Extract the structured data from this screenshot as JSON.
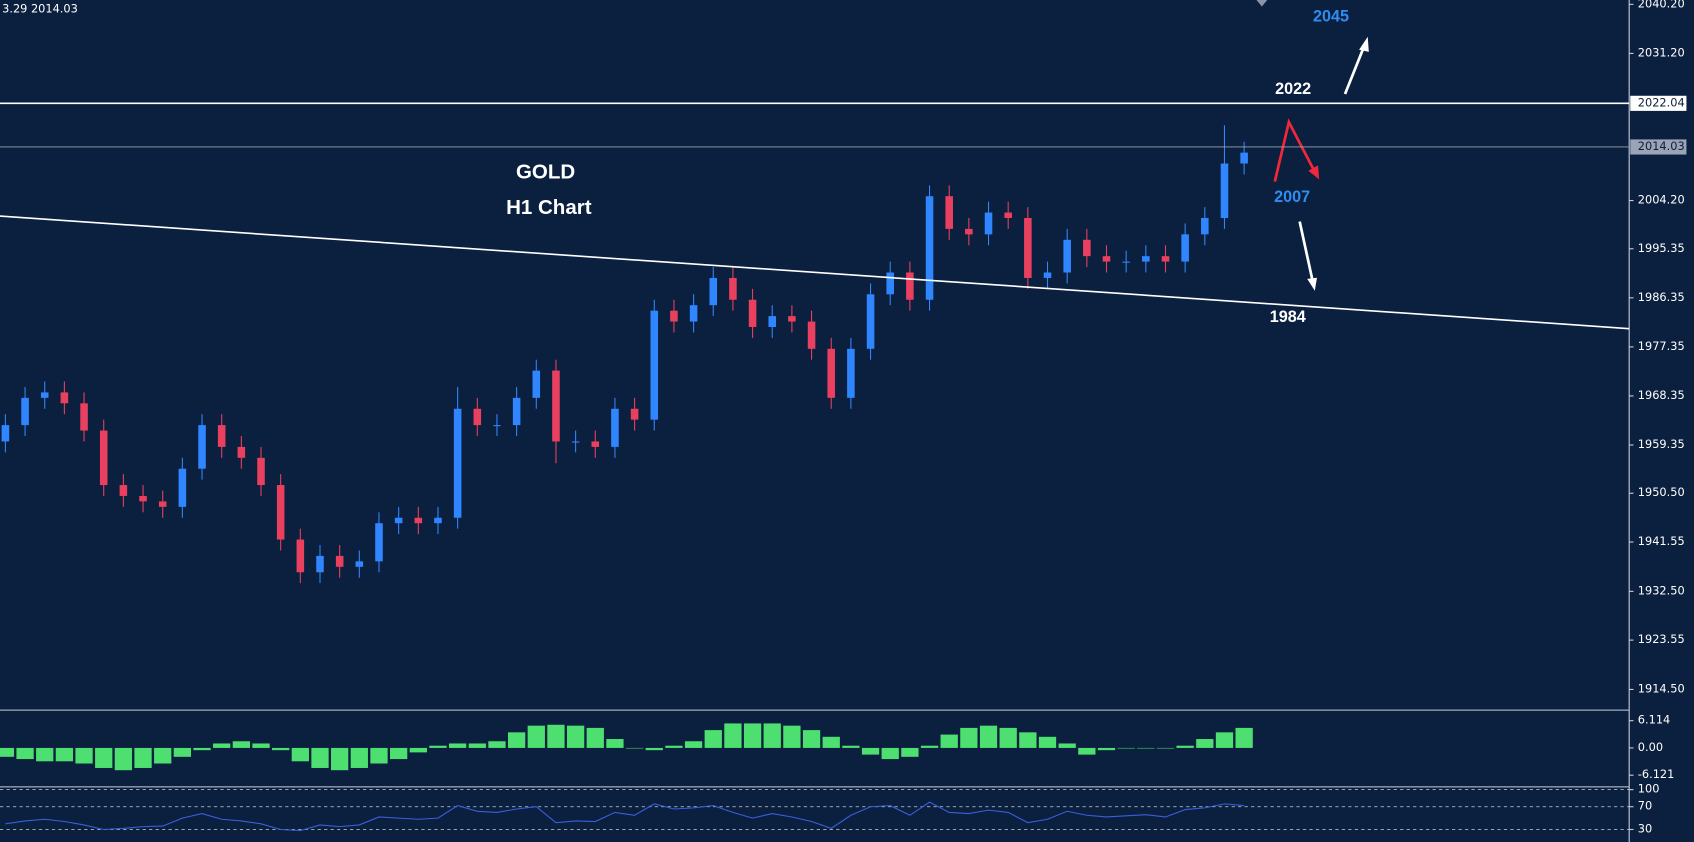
{
  "chart_data": [
    {
      "type": "candlestick",
      "header": "3.29 2014.03",
      "open": [
        1960,
        1963,
        1968,
        1969,
        1967,
        1962,
        1952,
        1950,
        1949,
        1948,
        1955,
        1963,
        1959,
        1957,
        1952,
        1942,
        1936,
        1939,
        1937,
        1938,
        1945,
        1946,
        1945,
        1946,
        1966,
        1963,
        1963,
        1968,
        1973,
        1960,
        1960,
        1959,
        1966,
        1964,
        1984,
        1982,
        1985,
        1990,
        1986,
        1981,
        1983,
        1982,
        1977,
        1968,
        1977,
        1987,
        1991,
        1986,
        2005,
        1999,
        1998,
        2002,
        2001,
        1990,
        1991,
        1997,
        1994,
        1993,
        1993,
        1994,
        1993,
        1998,
        2001,
        2011
      ],
      "high": [
        1965,
        1970,
        1971,
        1971,
        1969,
        1964,
        1954,
        1952,
        1951,
        1957,
        1965,
        1965,
        1961,
        1959,
        1954,
        1944,
        1941,
        1941,
        1940,
        1947,
        1948,
        1948,
        1948,
        1970,
        1968,
        1965,
        1970,
        1975,
        1975,
        1962,
        1962,
        1968,
        1968,
        1986,
        1986,
        1987,
        1992,
        1992,
        1988,
        1985,
        1985,
        1984,
        1979,
        1979,
        1989,
        1993,
        1993,
        2007,
        2007,
        2001,
        2004,
        2004,
        2003,
        1993,
        1999,
        1999,
        1996,
        1995,
        1996,
        1996,
        2000,
        2003,
        2018,
        2015
      ],
      "low": [
        1958,
        1961,
        1966,
        1965,
        1960,
        1950,
        1948,
        1947,
        1946,
        1946,
        1953,
        1957,
        1955,
        1950,
        1940,
        1934,
        1934,
        1935,
        1935,
        1936,
        1943,
        1943,
        1943,
        1944,
        1961,
        1961,
        1961,
        1966,
        1956,
        1958,
        1957,
        1957,
        1962,
        1962,
        1980,
        1980,
        1983,
        1984,
        1979,
        1979,
        1980,
        1975,
        1966,
        1966,
        1975,
        1985,
        1984,
        1984,
        1997,
        1996,
        1996,
        1999,
        1988,
        1988,
        1989,
        1992,
        1991,
        1991,
        1991,
        1991,
        1991,
        1996,
        1999,
        2009
      ],
      "close": [
        1963,
        1968,
        1969,
        1967,
        1962,
        1952,
        1950,
        1949,
        1948,
        1955,
        1963,
        1959,
        1957,
        1952,
        1942,
        1936,
        1939,
        1937,
        1938,
        1945,
        1946,
        1945,
        1946,
        1966,
        1963,
        1963,
        1968,
        1973,
        1960,
        1960,
        1959,
        1966,
        1964,
        1984,
        1982,
        1985,
        1990,
        1986,
        1981,
        1983,
        1982,
        1977,
        1968,
        1977,
        1987,
        1991,
        1986,
        2005,
        1999,
        1998,
        2002,
        2001,
        1990,
        1991,
        1997,
        1994,
        1993,
        1993,
        1994,
        1993,
        1998,
        2001,
        2011,
        2013
      ],
      "up_color": "#2f86ff",
      "down_color": "#e8405e",
      "ylim": [
        1910.9,
        2041.0
      ],
      "yticks": [
        {
          "value": 2040.2,
          "label": "2040.20"
        },
        {
          "value": 2031.2,
          "label": "2031.20"
        },
        {
          "value": 2004.2,
          "label": "2004.20"
        },
        1995.35,
        1986.35,
        1977.35,
        1968.35,
        1959.35,
        {
          "value": 1950.5,
          "label": "1950.50"
        },
        1941.55,
        {
          "value": 1932.5,
          "label": "1932.50"
        },
        1923.55,
        {
          "value": 1914.5,
          "label": "1914.50"
        }
      ],
      "price_lines": [
        {
          "value": 2022.04,
          "color": "#ffffff"
        },
        {
          "value": 2014.03,
          "color": "#9aa4b4"
        }
      ],
      "trendline": [
        2001.35,
        1980.7
      ],
      "annotations": [
        {
          "text": "GOLD",
          "color": "#ffffff"
        },
        {
          "text": "H1 Chart",
          "color": "#ffffff"
        },
        {
          "text": "2045",
          "color": "#2f8cf0"
        },
        {
          "text": "2022",
          "color": "#ffffff"
        },
        {
          "text": "2007",
          "color": "#2f8cf0"
        },
        {
          "text": "1984",
          "color": "#ffffff"
        }
      ]
    },
    {
      "type": "bar",
      "color": "#4ddf6f",
      "values": [
        -2,
        -2.5,
        -3,
        -3,
        -3.5,
        -4.5,
        -5,
        -4.5,
        -3.5,
        -2,
        -0.5,
        1,
        1.5,
        1,
        -0.5,
        -3,
        -4.5,
        -5,
        -4.5,
        -3.5,
        -2.5,
        -1,
        0.5,
        1,
        1,
        1.5,
        3.5,
        5,
        5.2,
        5,
        4.5,
        2,
        0,
        -0.5,
        0.5,
        1.5,
        4,
        5.5,
        5.5,
        5.5,
        5,
        4,
        2.5,
        0.5,
        -1.5,
        -2.5,
        -2,
        0.5,
        3,
        4.5,
        5,
        4.5,
        3.5,
        2.5,
        1,
        -1.5,
        -0.5,
        0,
        0,
        0,
        0.5,
        2,
        3.5,
        4.5
      ],
      "ylim": [
        -8.5,
        8
      ],
      "yticks": [
        6.114,
        {
          "value": 0,
          "label": "0.00"
        },
        -6.121
      ]
    },
    {
      "type": "line",
      "color": "#3a5fdd",
      "values": [
        40,
        45,
        48,
        44,
        38,
        30,
        32,
        35,
        36,
        50,
        58,
        48,
        45,
        40,
        30,
        28,
        38,
        35,
        38,
        52,
        50,
        48,
        50,
        72,
        62,
        60,
        66,
        70,
        42,
        45,
        44,
        60,
        55,
        75,
        66,
        68,
        72,
        60,
        50,
        58,
        52,
        44,
        32,
        55,
        70,
        72,
        55,
        78,
        60,
        58,
        64,
        60,
        42,
        48,
        62,
        55,
        52,
        54,
        56,
        52,
        65,
        68,
        75,
        72
      ],
      "ylim": [
        8,
        103
      ],
      "yticks": [
        100,
        70,
        30
      ],
      "grid": true
    }
  ]
}
